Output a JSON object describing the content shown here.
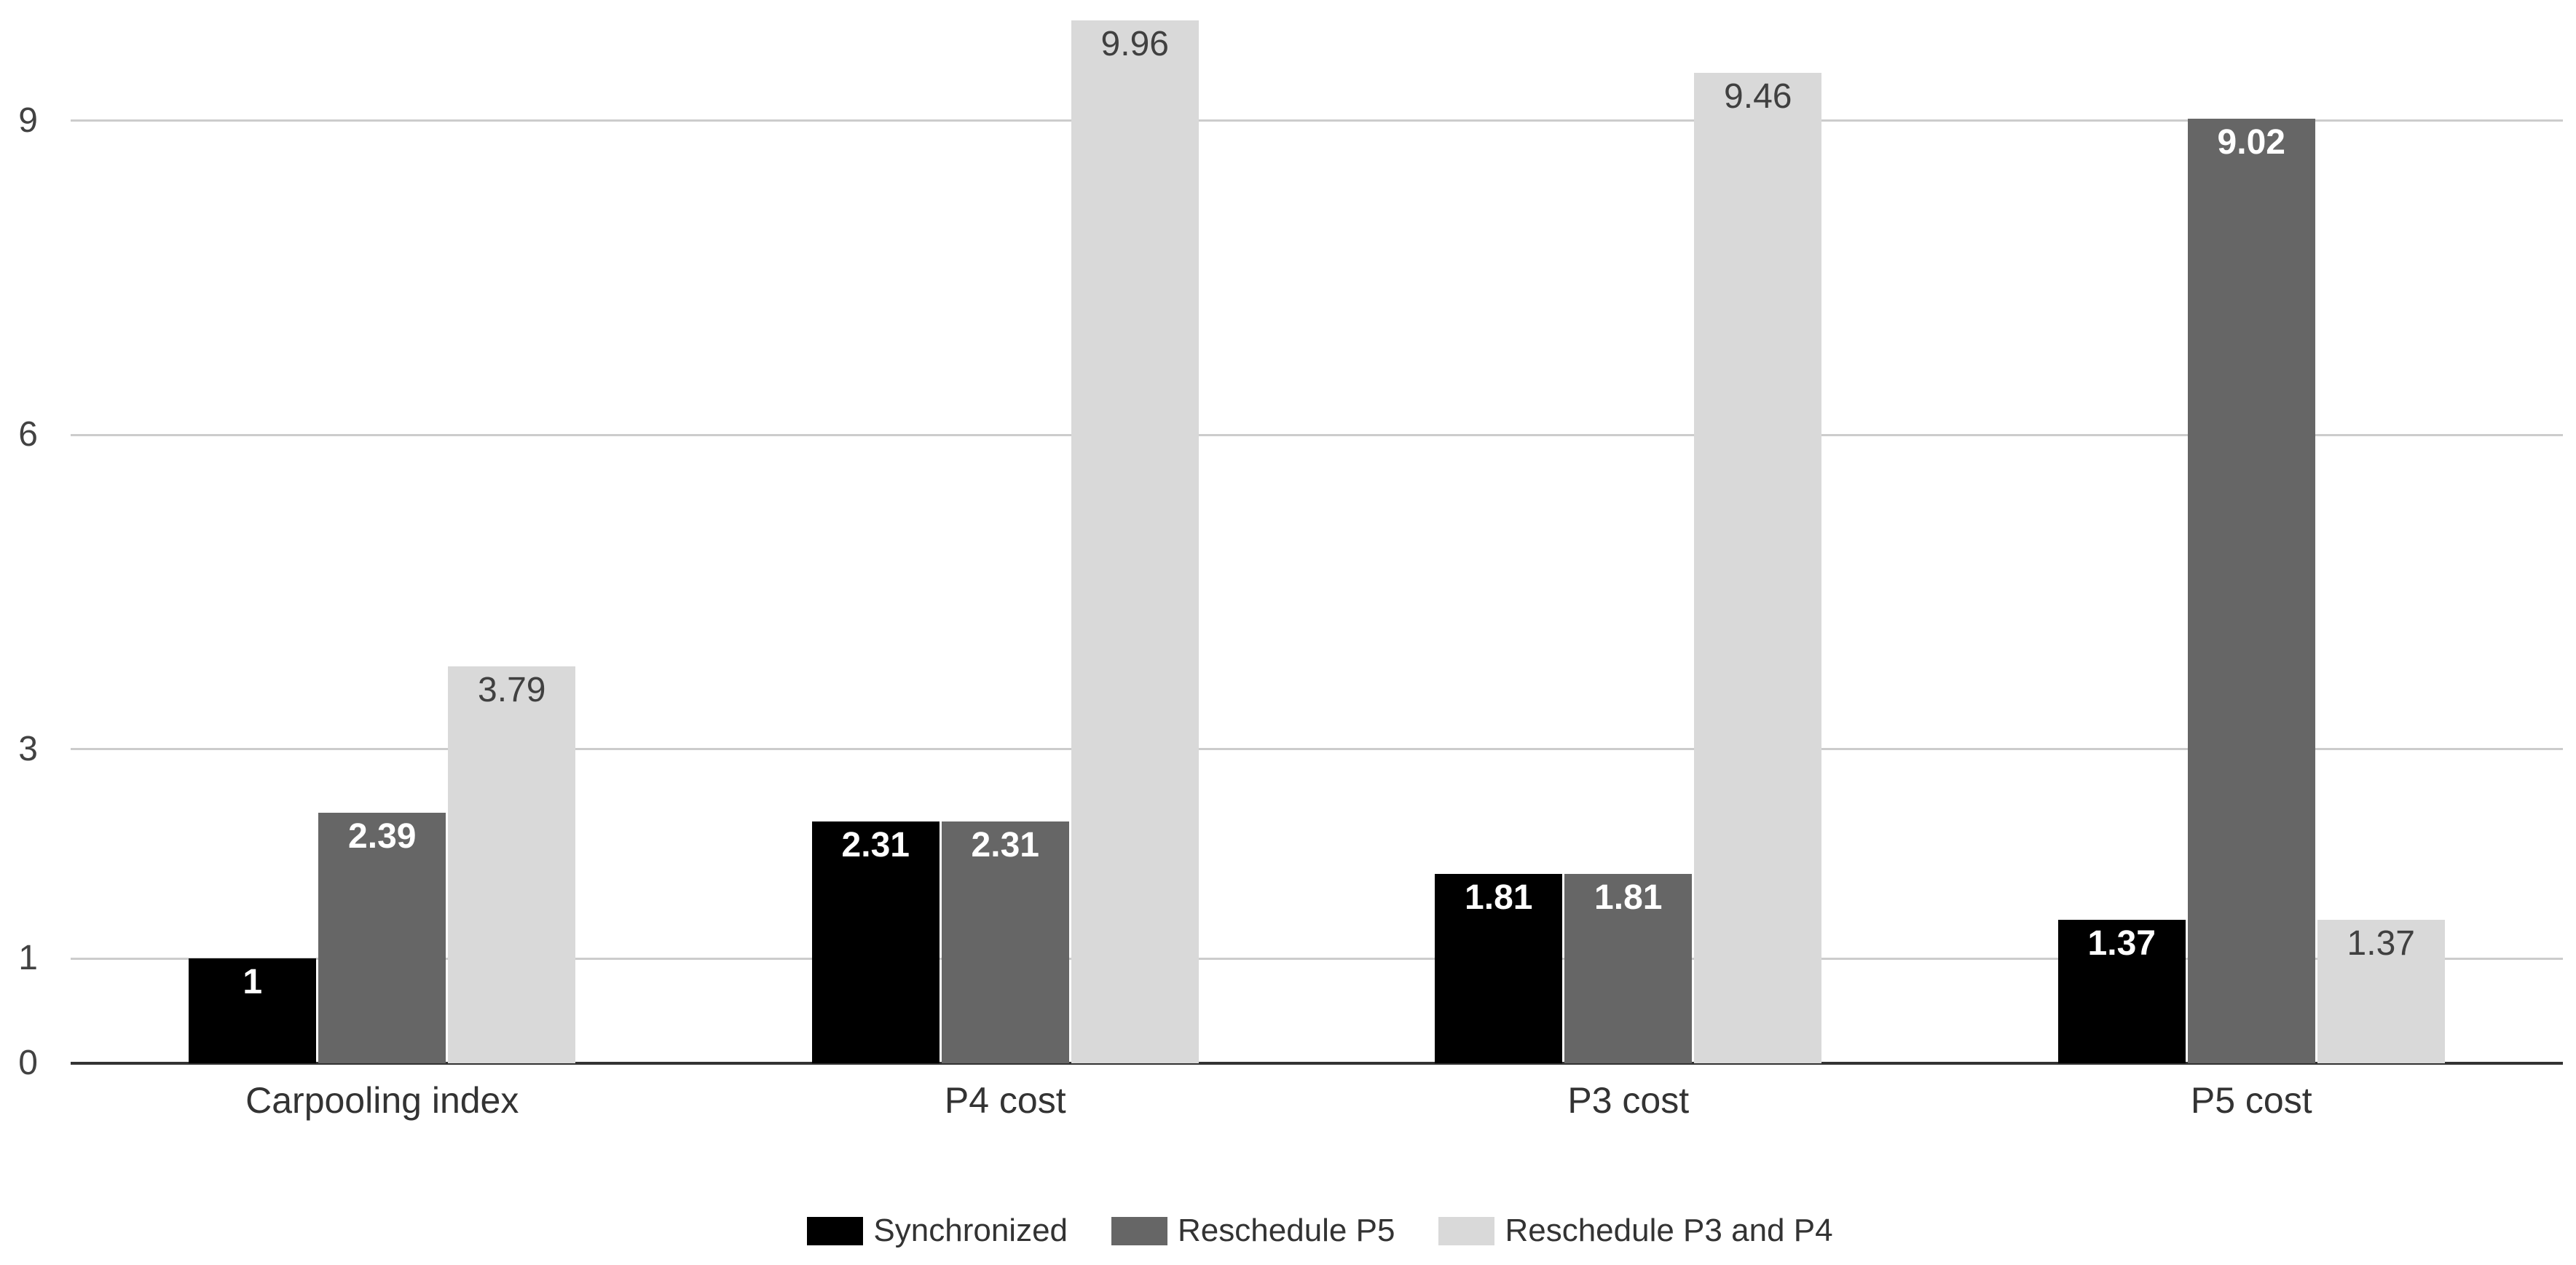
{
  "chart_data": {
    "type": "bar",
    "categories": [
      "Carpooling index",
      "P4 cost",
      "P3 cost",
      "P5 cost"
    ],
    "series": [
      {
        "name": "Synchronized",
        "color": "#000000",
        "label_color": "#ffffff",
        "label_bold": true,
        "values": [
          1,
          2.31,
          1.81,
          1.37
        ]
      },
      {
        "name": "Reschedule P5",
        "color": "#666666",
        "label_color": "#ffffff",
        "label_bold": true,
        "values": [
          2.39,
          2.31,
          1.81,
          9.02
        ]
      },
      {
        "name": "Reschedule P3 and P4",
        "color": "#d9d9d9",
        "label_color": "#404040",
        "label_bold": false,
        "values": [
          3.79,
          9.96,
          9.46,
          1.37
        ]
      }
    ],
    "data_labels": [
      [
        "1",
        "2.39",
        "3.79"
      ],
      [
        "2.31",
        "2.31",
        "9.96"
      ],
      [
        "1.81",
        "1.81",
        "9.46"
      ],
      [
        "1.37",
        "9.02",
        "1.37"
      ]
    ],
    "yticks": [
      0,
      1,
      3,
      6,
      9
    ],
    "ytick_labels": [
      "0",
      "1",
      "3",
      "6",
      "9"
    ],
    "ylim": [
      0,
      10.0
    ],
    "grid": true,
    "legend_position": "bottom",
    "title": "",
    "xlabel": "",
    "ylabel": ""
  },
  "style_colors": {
    "gridline": "#cccccc",
    "baseline": "#333333",
    "ytick_text": "#424242",
    "category_text": "#333333",
    "legend_text": "#333333",
    "background": "#ffffff"
  }
}
